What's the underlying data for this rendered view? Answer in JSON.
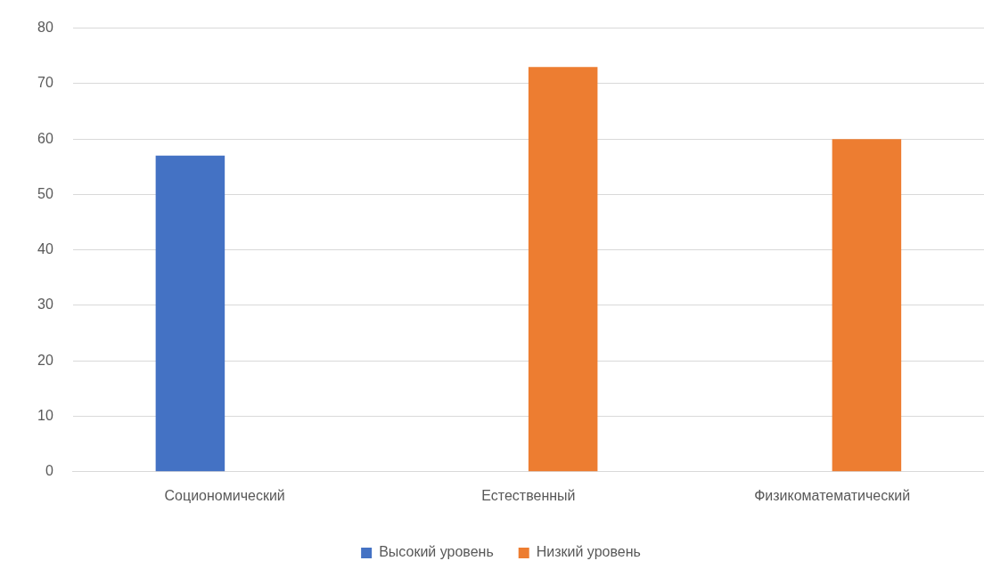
{
  "chart_data": {
    "type": "bar",
    "categories": [
      "Социономический",
      "Естественный",
      "Физикоматематический"
    ],
    "series": [
      {
        "name": "Высокий уровень",
        "color": "#4472c4",
        "values": [
          57,
          null,
          null
        ]
      },
      {
        "name": "Низкий уровень",
        "color": "#ed7d31",
        "values": [
          null,
          73,
          60
        ]
      }
    ],
    "ylim": [
      0,
      80
    ],
    "yticks": [
      0,
      10,
      20,
      30,
      40,
      50,
      60,
      70,
      80
    ],
    "grid": "y",
    "legend": "bottom"
  }
}
